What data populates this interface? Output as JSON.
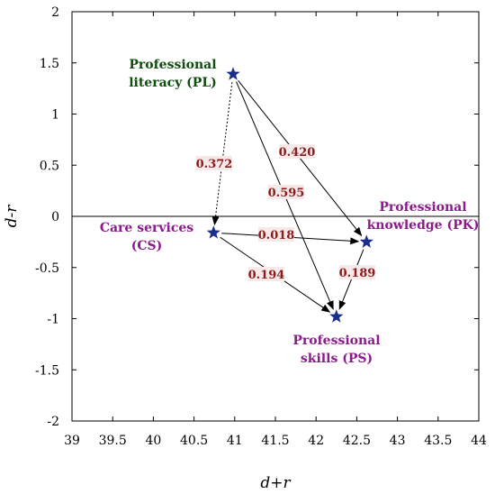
{
  "chart_data": {
    "type": "scatter",
    "xlabel": "d+r",
    "ylabel": "d-r",
    "xlim": [
      39,
      44
    ],
    "ylim": [
      -2,
      2
    ],
    "xticks": [
      "39",
      "39.5",
      "40",
      "40.5",
      "41",
      "41.5",
      "42",
      "42.5",
      "43",
      "43.5",
      "44"
    ],
    "yticks": [
      "2",
      "1.5",
      "1",
      "0.5",
      "0",
      "-0.5",
      "-1",
      "-1.5",
      "-2"
    ],
    "zero_line": true,
    "grid": false,
    "colors": {
      "marker": "#1a2e8a",
      "edge_label": "#8b1a1a",
      "edge_label_bg": "#f6e9e9",
      "label_pl": "#0f4d0f",
      "label_other": "#8b1a8b"
    },
    "points": [
      {
        "id": "PL",
        "name": "Professional literacy (PL)",
        "label_lines": [
          "Professional",
          "literacy (PL)"
        ],
        "x": 40.98,
        "y": 1.39
      },
      {
        "id": "CS",
        "name": "Care services (CS)",
        "label_lines": [
          "Care services",
          "(CS)"
        ],
        "x": 40.74,
        "y": -0.16
      },
      {
        "id": "PK",
        "name": "Professional knowledge (PK)",
        "label_lines": [
          "Professional",
          "knowledge (PK)"
        ],
        "x": 42.62,
        "y": -0.25
      },
      {
        "id": "PS",
        "name": "Professional skills (PS)",
        "label_lines": [
          "Professional",
          "skills (PS)"
        ],
        "x": 42.25,
        "y": -0.98
      }
    ],
    "edges": [
      {
        "from": "PL",
        "to": "CS",
        "value": "0.372",
        "style": "dotted"
      },
      {
        "from": "PL",
        "to": "PS",
        "value": "0.595",
        "style": "solid"
      },
      {
        "from": "PL",
        "to": "PK",
        "value": "0.420",
        "style": "solid"
      },
      {
        "from": "CS",
        "to": "PK",
        "value": "0.018",
        "style": "solid"
      },
      {
        "from": "CS",
        "to": "PS",
        "value": "0.194",
        "style": "solid"
      },
      {
        "from": "PK",
        "to": "PS",
        "value": "0.189",
        "style": "solid"
      }
    ]
  }
}
